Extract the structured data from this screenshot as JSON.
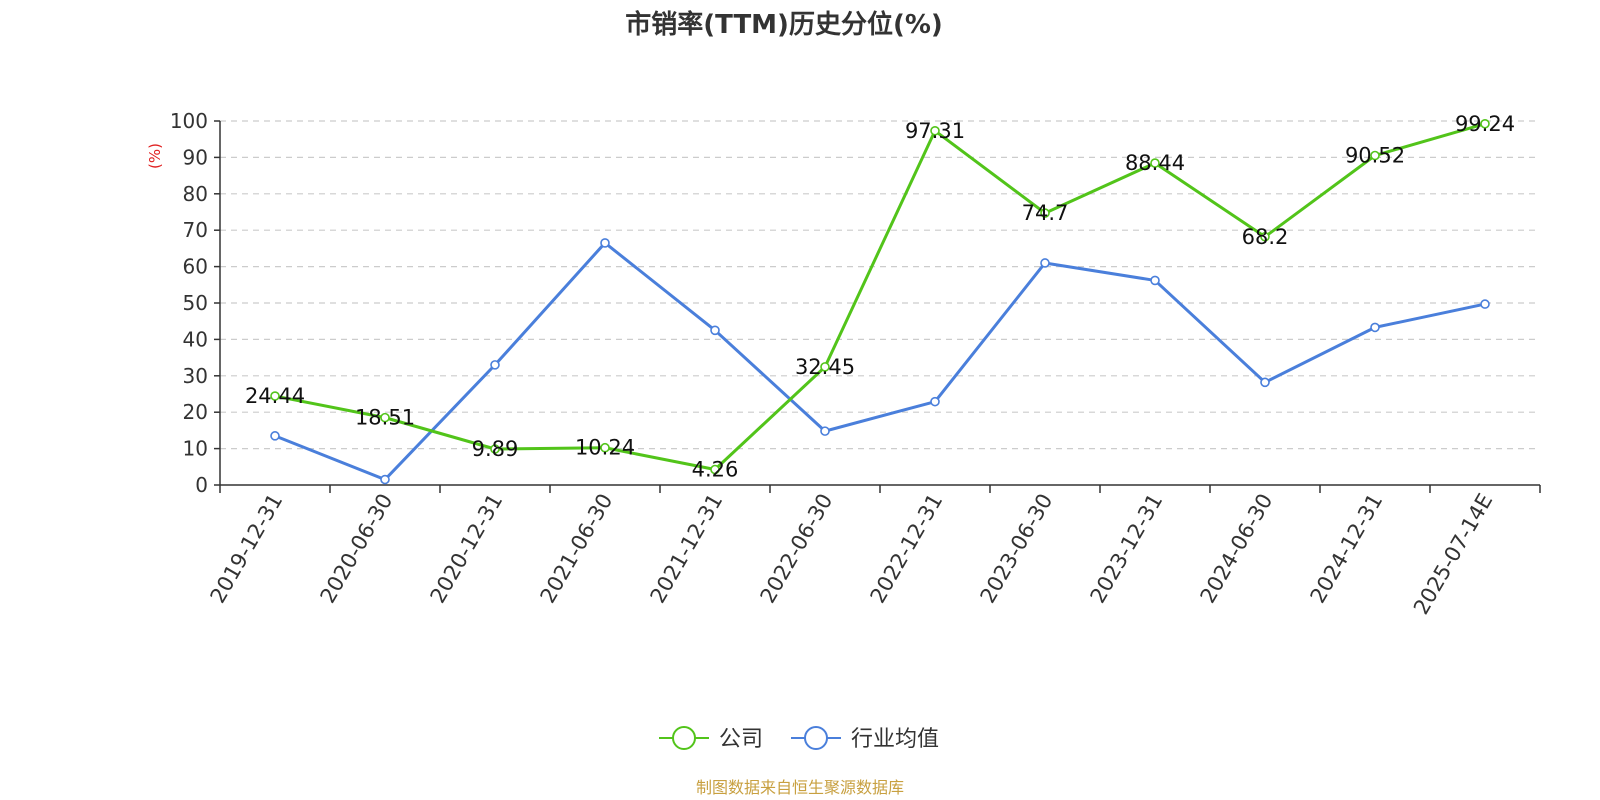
{
  "chart_data": {
    "type": "line",
    "title": "市销率(TTM)历史分位(%)",
    "ylabel": "(%)",
    "ylim": [
      0,
      100
    ],
    "yticks": [
      0,
      10,
      20,
      30,
      40,
      50,
      60,
      70,
      80,
      90,
      100
    ],
    "grid": true,
    "legend_position": "bottom",
    "categories": [
      "2019-12-31",
      "2020-06-30",
      "2020-12-31",
      "2021-06-30",
      "2021-12-31",
      "2022-06-30",
      "2022-12-31",
      "2023-06-30",
      "2023-12-31",
      "2024-06-30",
      "2024-12-31",
      "2025-07-14E"
    ],
    "series": [
      {
        "name": "公司",
        "color": "#52c41a",
        "values": [
          24.44,
          18.51,
          9.89,
          10.24,
          4.26,
          32.45,
          97.31,
          74.7,
          88.44,
          68.2,
          90.52,
          99.24
        ],
        "labels": [
          "24.44",
          "18.51",
          "9.89",
          "10.24",
          "4.26",
          "32.45",
          "97.31",
          "74.7",
          "88.44",
          "68.2",
          "90.52",
          "99.24"
        ]
      },
      {
        "name": "行业均值",
        "color": "#4a7fdb",
        "values": [
          13.5,
          1.5,
          33.0,
          66.5,
          42.5,
          14.8,
          22.9,
          61.0,
          56.2,
          28.2,
          43.3,
          49.7
        ]
      }
    ],
    "source": "制图数据来自恒生聚源数据库",
    "source_color": "#c8a040",
    "ylabel_color": "#e02020"
  }
}
